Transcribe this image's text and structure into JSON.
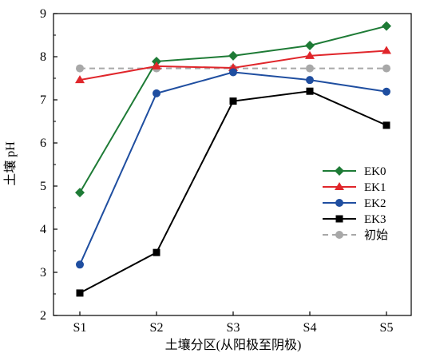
{
  "chart_data": {
    "type": "line",
    "categories": [
      "S1",
      "S2",
      "S3",
      "S4",
      "S5"
    ],
    "xlabel": "土壤分区(从阳极至阴极)",
    "ylabel": "土壤 pH",
    "ylim": [
      2,
      9
    ],
    "yticks": [
      2,
      3,
      4,
      5,
      6,
      7,
      8,
      9
    ],
    "grid": false,
    "legend_position": "right-middle",
    "series": [
      {
        "name": "EK0",
        "values": [
          4.85,
          7.89,
          8.02,
          8.26,
          8.71
        ],
        "color": "#1e7b36",
        "marker": "diamond",
        "dash": "solid"
      },
      {
        "name": "EK1",
        "values": [
          7.46,
          7.78,
          7.74,
          8.02,
          8.14
        ],
        "color": "#e0262b",
        "marker": "triangle",
        "dash": "solid"
      },
      {
        "name": "EK2",
        "values": [
          3.18,
          7.15,
          7.64,
          7.46,
          7.19
        ],
        "color": "#1f4ea0",
        "marker": "circle",
        "dash": "solid"
      },
      {
        "name": "EK3",
        "values": [
          2.52,
          3.46,
          6.97,
          7.2,
          6.41
        ],
        "color": "#000000",
        "marker": "square",
        "dash": "solid"
      },
      {
        "name": "初始",
        "values": [
          7.73,
          7.73,
          7.73,
          7.73,
          7.73
        ],
        "color": "#a8a8a8",
        "marker": "circle",
        "dash": "dashed"
      }
    ]
  }
}
